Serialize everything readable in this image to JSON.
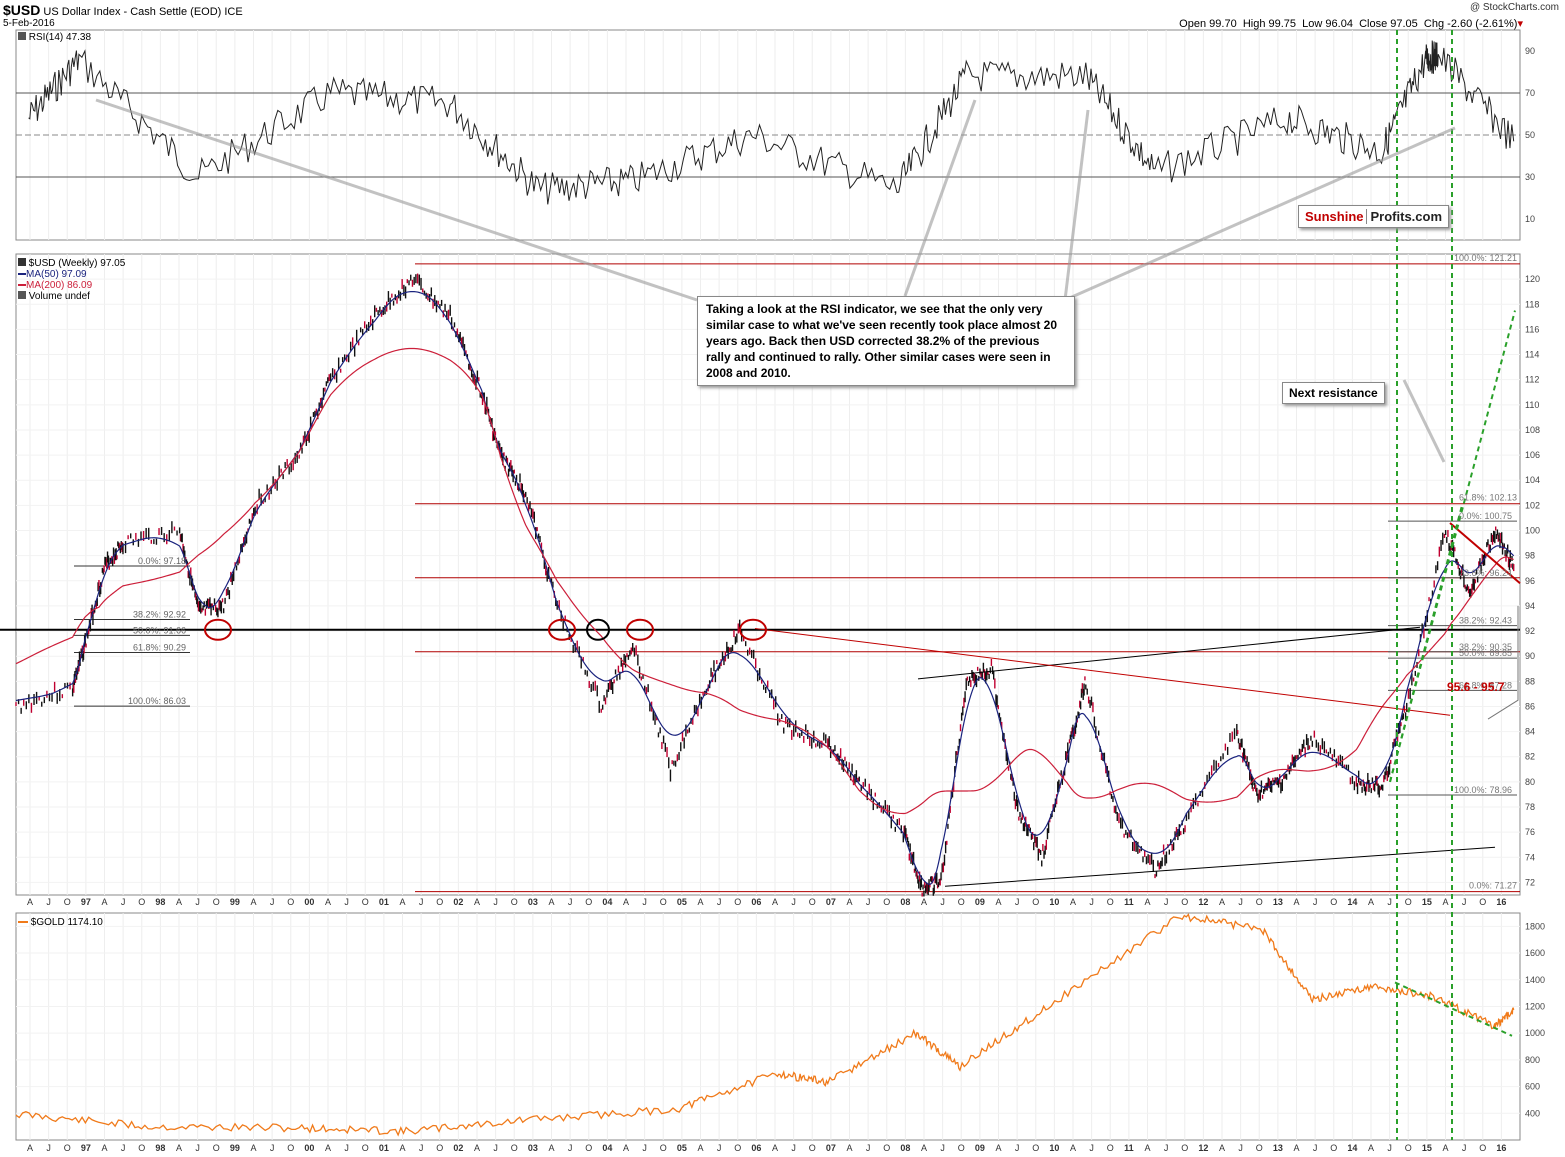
{
  "header": {
    "symbol": "$USD",
    "name": "US Dollar Index - Cash Settle (EOD)",
    "exchange": "ICE",
    "date": "5-Feb-2016",
    "watermark": "@ StockCharts.com",
    "open_label": "Open",
    "open": "99.70",
    "high_label": "High",
    "high": "99.75",
    "low_label": "Low",
    "low": "96.04",
    "close_label": "Close",
    "close": "97.05",
    "chg_label": "Chg",
    "chg": "-2.60 (-2.61%)",
    "chg_color": "#c00000"
  },
  "rsi_panel": {
    "legend": "RSI(14) 47.38",
    "levels": [
      "90",
      "70",
      "50",
      "30",
      "10"
    ]
  },
  "main_panel": {
    "legend_usd": "$USD (Weekly) 97.05",
    "legend_ma50": "MA(50) 97.09",
    "legend_ma200": "MA(200) 86.09",
    "legend_volume": "Volume undef",
    "ma50_color": "#1a237e",
    "ma200_color": "#cc1f3a",
    "y_ticks": [
      "120",
      "118",
      "116",
      "114",
      "112",
      "110",
      "108",
      "106",
      "104",
      "102",
      "100",
      "98",
      "96",
      "94",
      "92",
      "90",
      "88",
      "86",
      "84",
      "82",
      "80",
      "78",
      "76",
      "74",
      "72"
    ]
  },
  "gold_panel": {
    "legend": "$GOLD 1174.10",
    "color": "#f07a1a",
    "y_ticks": [
      "1800",
      "1600",
      "1400",
      "1200",
      "1000",
      "800",
      "600",
      "400"
    ]
  },
  "x_axis": {
    "labels": [
      "A",
      "J",
      "O",
      "97",
      "A",
      "J",
      "O",
      "98",
      "A",
      "J",
      "O",
      "99",
      "A",
      "J",
      "O",
      "00",
      "A",
      "J",
      "O",
      "01",
      "A",
      "J",
      "O",
      "02",
      "A",
      "J",
      "O",
      "03",
      "A",
      "J",
      "O",
      "04",
      "A",
      "J",
      "O",
      "05",
      "A",
      "J",
      "O",
      "06",
      "A",
      "J",
      "O",
      "07",
      "A",
      "J",
      "O",
      "08",
      "A",
      "J",
      "O",
      "09",
      "A",
      "J",
      "O",
      "10",
      "A",
      "J",
      "O",
      "11",
      "A",
      "J",
      "O",
      "12",
      "A",
      "J",
      "O",
      "13",
      "A",
      "J",
      "O",
      "14",
      "A",
      "J",
      "O",
      "15",
      "A",
      "J",
      "O",
      "16"
    ]
  },
  "fib_left": {
    "labels": [
      "0.0%: 97.18",
      "38.2%: 92.92",
      "50.0%: 91.66",
      "61.8%: 90.29",
      "100.0%: 86.03"
    ]
  },
  "fib_major": {
    "labels": [
      "100.0%: 121.21",
      "61.8%: 102.13",
      "0.0%: 71.27"
    ]
  },
  "fib_right": {
    "labels": [
      "0.0%: 100.75",
      "23.6%: 96.24",
      "38.2%: 92.43",
      "38.2%: 90.35",
      "50.0%: 89.85",
      "61.8%: 87.28",
      "100.0%: 78.96"
    ]
  },
  "annotations": {
    "rsi_note": "Taking a look at the RSI indicator, we see that the only very similar case to what we've seen recently took place almost 20 years ago. Back then USD corrected 38.2% of the previous rally and continued to rally. Other similar cases were seen in 2008 and 2010.",
    "next_resistance": "Next resistance",
    "target_range": "95.6 - 95.7",
    "brand_a": "Sunshine",
    "brand_b": "Profits.com"
  },
  "chart_data": [
    {
      "type": "line",
      "title": "RSI(14)",
      "ylim": [
        0,
        100
      ],
      "reference_lines": [
        30,
        50,
        70
      ],
      "current": 47.38,
      "series": [
        {
          "name": "RSI(14)",
          "x": [
            "1996-06",
            "1997-02",
            "1998-09",
            "2000-06",
            "2002-01",
            "2003-03",
            "2004-06",
            "2006-01",
            "2007-12",
            "2008-11",
            "2010-06",
            "2011-05",
            "2013-02",
            "2014-05",
            "2014-12",
            "2015-02",
            "2016-02"
          ],
          "y": [
            58,
            86,
            30,
            70,
            65,
            24,
            28,
            50,
            24,
            78,
            78,
            32,
            58,
            42,
            86,
            88,
            47
          ]
        }
      ]
    },
    {
      "type": "line",
      "title": "$USD (Weekly)",
      "ylim": [
        71,
        122
      ],
      "series": [
        {
          "name": "$USD (Weekly)",
          "x": [
            "1996-04",
            "1997-01",
            "1997-03",
            "1997-06",
            "1997-09",
            "1998-06",
            "1998-09",
            "1999-01",
            "1999-06",
            "2000-01",
            "2000-06",
            "2001-01",
            "2001-07",
            "2002-01",
            "2002-06",
            "2002-09",
            "2003-01",
            "2003-06",
            "2004-01",
            "2004-06",
            "2004-12",
            "2005-06",
            "2005-11",
            "2006-06",
            "2007-01",
            "2007-06",
            "2008-01",
            "2008-04",
            "2008-07",
            "2008-11",
            "2009-03",
            "2009-07",
            "2009-11",
            "2010-03",
            "2010-06",
            "2010-11",
            "2011-05",
            "2011-10",
            "2012-06",
            "2012-09",
            "2013-01",
            "2013-06",
            "2014-01",
            "2014-05",
            "2014-09",
            "2015-03",
            "2015-07",
            "2015-11",
            "2016-02"
          ],
          "y": [
            86,
            87.5,
            91,
            97,
            99,
            100,
            93.5,
            94,
            102,
            106,
            112,
            117,
            120,
            117,
            111,
            106,
            103,
            94,
            86,
            91,
            81,
            88,
            92,
            84.5,
            83,
            80,
            76,
            71.5,
            72,
            88,
            89,
            78,
            74,
            82,
            88,
            77,
            73,
            77,
            84,
            79,
            80,
            83.5,
            80,
            79.5,
            86,
            100,
            95,
            100,
            97.05
          ]
        },
        {
          "name": "MA(50)",
          "value": 97.09
        },
        {
          "name": "MA(200)",
          "value": 86.09
        }
      ]
    },
    {
      "type": "line",
      "title": "$GOLD",
      "ylim": [
        200,
        1900
      ],
      "series": [
        {
          "name": "$GOLD",
          "x": [
            "1996-04",
            "1998-01",
            "2000-01",
            "2001-06",
            "2003-01",
            "2005-01",
            "2006-05",
            "2007-01",
            "2008-03",
            "2008-10",
            "2009-12",
            "2011-09",
            "2012-10",
            "2013-06",
            "2014-03",
            "2015-01",
            "2015-11",
            "2016-02"
          ],
          "y": [
            395,
            300,
            290,
            265,
            350,
            430,
            700,
            630,
            1000,
            750,
            1200,
            1880,
            1780,
            1250,
            1350,
            1280,
            1050,
            1174.1
          ]
        }
      ]
    }
  ]
}
